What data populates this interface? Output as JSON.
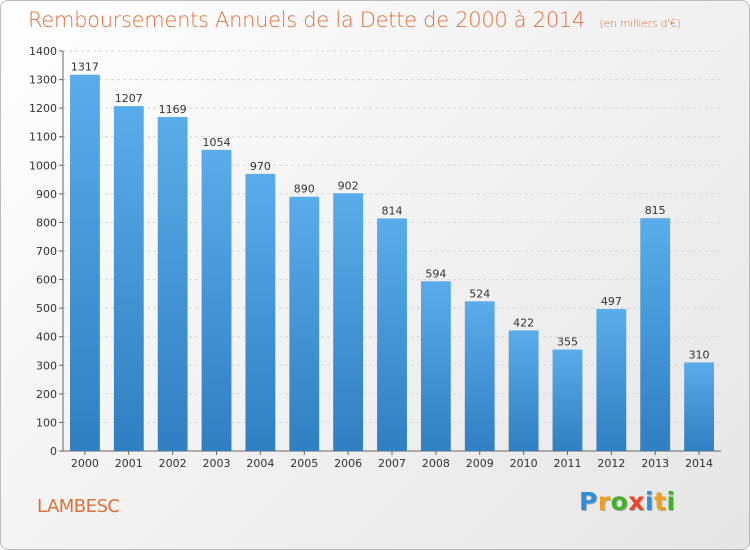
{
  "title": "Remboursements Annuels de la Dette de 2000 à 2014",
  "subtitle": "(en milliers d'€)",
  "city": "LAMBESC",
  "logo": {
    "letters": [
      "P",
      "r",
      "o",
      "x",
      "i",
      "t",
      "i"
    ],
    "colors": [
      "#2e8fd8",
      "#f0a020",
      "#43b02a",
      "#e8462b",
      "#2e8fd8",
      "#f0a020",
      "#43b02a"
    ]
  },
  "colors": {
    "bar_top": "#5aacea",
    "bar_bottom": "#2f7fc2",
    "text_accent": "#e0703a"
  },
  "chart_data": {
    "type": "bar",
    "categories": [
      "2000",
      "2001",
      "2002",
      "2003",
      "2004",
      "2005",
      "2006",
      "2007",
      "2008",
      "2009",
      "2010",
      "2011",
      "2012",
      "2013",
      "2014"
    ],
    "values": [
      1317,
      1207,
      1169,
      1054,
      970,
      890,
      902,
      814,
      594,
      524,
      422,
      355,
      497,
      815,
      310
    ],
    "yticks": [
      0,
      100,
      200,
      300,
      400,
      500,
      600,
      700,
      800,
      900,
      1000,
      1100,
      1200,
      1300,
      1400
    ],
    "ylim": [
      0,
      1400
    ],
    "grid": true,
    "xlabel": "",
    "ylabel": ""
  }
}
